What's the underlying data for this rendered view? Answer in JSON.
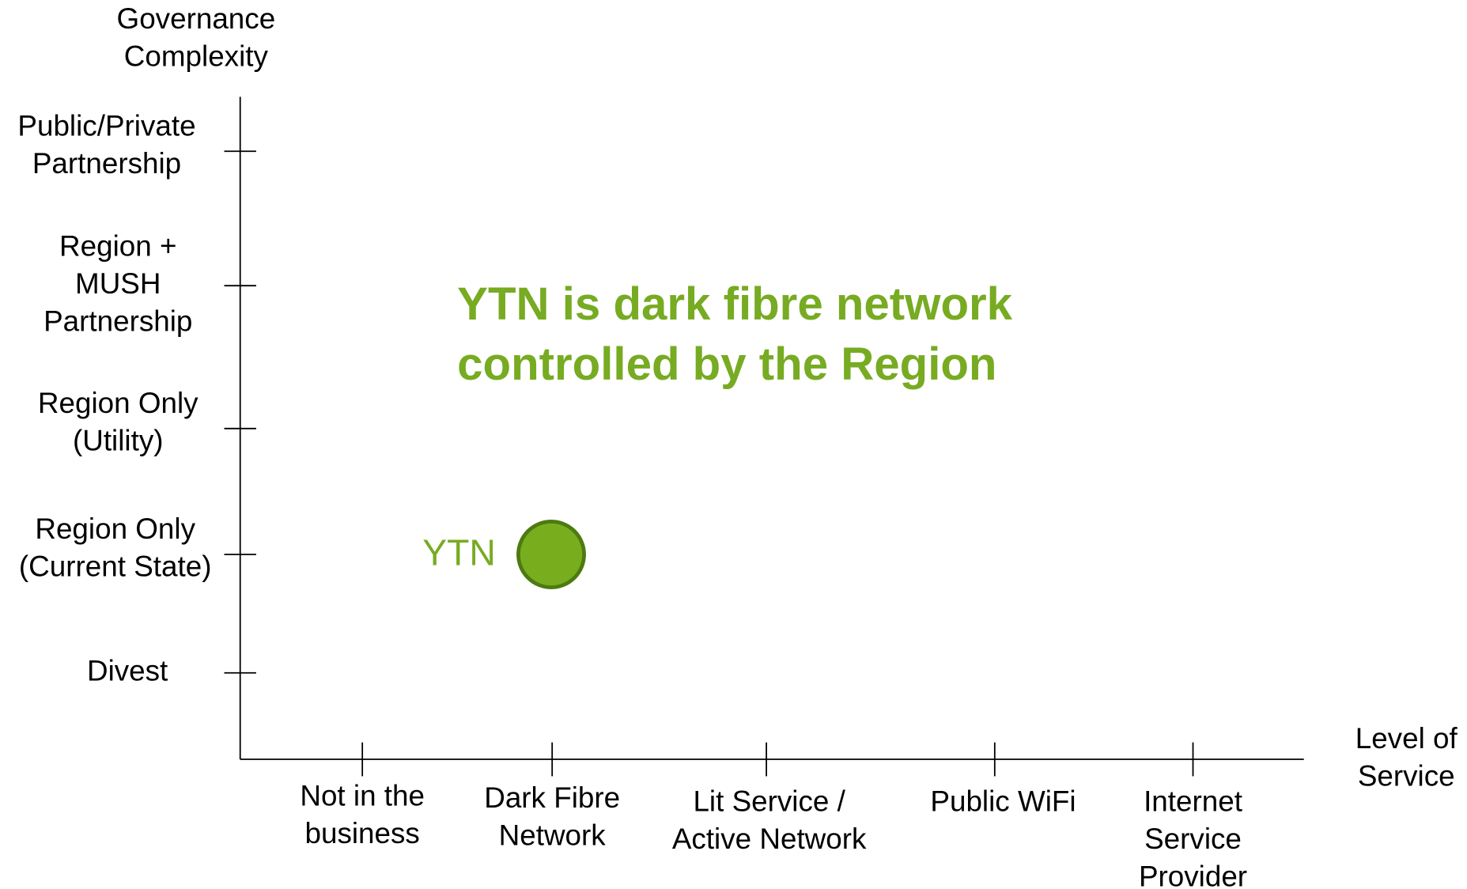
{
  "y_axis": {
    "title": [
      "Governance",
      "Complexity"
    ],
    "categories": [
      [
        "Divest"
      ],
      [
        "Region Only",
        "(Current State)"
      ],
      [
        "Region Only",
        "(Utility)"
      ],
      [
        "Region +",
        "MUSH",
        "Partnership"
      ],
      [
        "Public/Private",
        "Partnership"
      ]
    ]
  },
  "x_axis": {
    "title": [
      "Level of",
      "Service"
    ],
    "categories": [
      [
        "Not in the",
        "business"
      ],
      [
        "Dark Fibre",
        "Network"
      ],
      [
        "Lit Service /",
        "Active Network"
      ],
      [
        "Public WiFi"
      ],
      [
        "Internet",
        "Service",
        "Provider"
      ]
    ]
  },
  "point": {
    "label": "YTN"
  },
  "annotation": [
    "YTN is dark fibre network",
    "controlled by the Region"
  ]
}
